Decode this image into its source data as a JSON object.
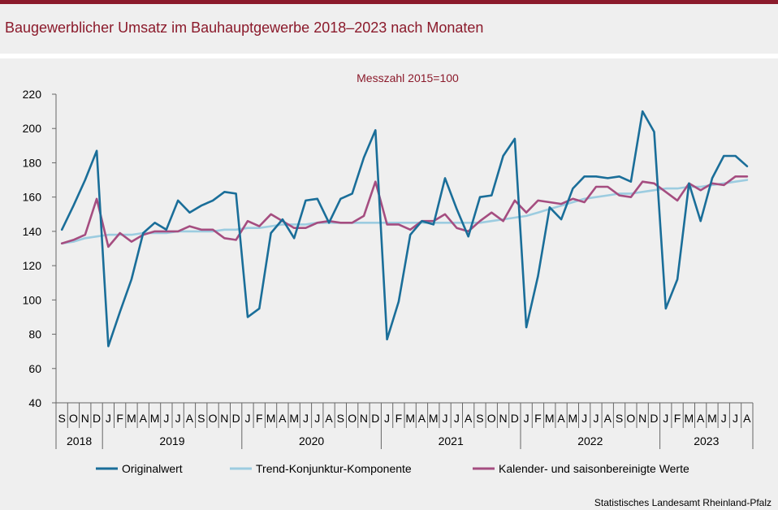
{
  "header": {
    "title": "Baugewerblicher Umsatz im Bauhauptgewerbe 2018–2023 nach Monaten"
  },
  "footer": {
    "source": "Statistisches Landesamt Rheinland-Pfalz"
  },
  "colors": {
    "accent": "#8b1a2b",
    "original": "#1a6e99",
    "trend": "#9ccce0",
    "adjusted": "#a54d80"
  },
  "chart_data": {
    "type": "line",
    "subtitle": "Messzahl 2015=100",
    "ylim": [
      40,
      220
    ],
    "yticks": [
      40,
      60,
      80,
      100,
      120,
      140,
      160,
      180,
      200,
      220
    ],
    "grid": false,
    "legend_position": "bottom",
    "months": [
      "S",
      "O",
      "N",
      "D",
      "J",
      "F",
      "M",
      "A",
      "M",
      "J",
      "J",
      "A",
      "S",
      "O",
      "N",
      "D",
      "J",
      "F",
      "M",
      "A",
      "M",
      "J",
      "J",
      "A",
      "S",
      "O",
      "N",
      "D",
      "J",
      "F",
      "M",
      "A",
      "M",
      "J",
      "J",
      "A",
      "S",
      "O",
      "N",
      "D",
      "J",
      "F",
      "M",
      "A",
      "M",
      "J",
      "J",
      "A",
      "S",
      "O",
      "N",
      "D",
      "J",
      "F",
      "M",
      "A",
      "M",
      "J",
      "J",
      "A"
    ],
    "years": [
      {
        "label": "2018",
        "start": 0,
        "count": 4
      },
      {
        "label": "2019",
        "start": 4,
        "count": 12
      },
      {
        "label": "2020",
        "start": 16,
        "count": 12
      },
      {
        "label": "2021",
        "start": 28,
        "count": 12
      },
      {
        "label": "2022",
        "start": 40,
        "count": 12
      },
      {
        "label": "2023",
        "start": 52,
        "count": 8
      }
    ],
    "series": [
      {
        "name": "Originalwert",
        "color": "#1a6e99",
        "values": [
          141,
          155,
          170,
          187,
          73,
          93,
          112,
          139,
          145,
          141,
          158,
          151,
          155,
          158,
          163,
          162,
          90,
          95,
          139,
          147,
          136,
          158,
          159,
          145,
          159,
          162,
          183,
          199,
          77,
          99,
          138,
          146,
          144,
          171,
          153,
          137,
          160,
          161,
          184,
          194,
          84,
          114,
          154,
          147,
          165,
          172,
          172,
          171,
          172,
          169,
          210,
          198,
          95,
          112,
          168,
          146,
          171,
          184,
          184,
          178
        ]
      },
      {
        "name": "Trend-Konjunktur-Komponente",
        "color": "#9ccce0",
        "values": [
          133,
          134,
          136,
          137,
          138,
          138,
          138,
          139,
          139,
          139,
          140,
          140,
          140,
          140,
          141,
          141,
          142,
          142,
          143,
          144,
          144,
          144,
          145,
          145,
          145,
          145,
          145,
          145,
          145,
          145,
          145,
          145,
          145,
          145,
          145,
          145,
          145,
          146,
          147,
          148,
          149,
          151,
          153,
          155,
          157,
          159,
          160,
          161,
          162,
          162,
          163,
          164,
          165,
          165,
          166,
          166,
          167,
          168,
          169,
          170
        ]
      },
      {
        "name": "Kalender- und saisonbereinigte Werte",
        "color": "#a54d80",
        "values": [
          133,
          135,
          138,
          159,
          131,
          139,
          134,
          138,
          140,
          140,
          140,
          143,
          141,
          141,
          136,
          135,
          146,
          143,
          150,
          146,
          142,
          142,
          145,
          146,
          145,
          145,
          149,
          169,
          144,
          144,
          141,
          146,
          146,
          150,
          142,
          140,
          146,
          151,
          146,
          158,
          151,
          158,
          157,
          156,
          159,
          157,
          166,
          166,
          161,
          160,
          169,
          168,
          163,
          158,
          168,
          164,
          168,
          167,
          172,
          172
        ]
      }
    ]
  }
}
